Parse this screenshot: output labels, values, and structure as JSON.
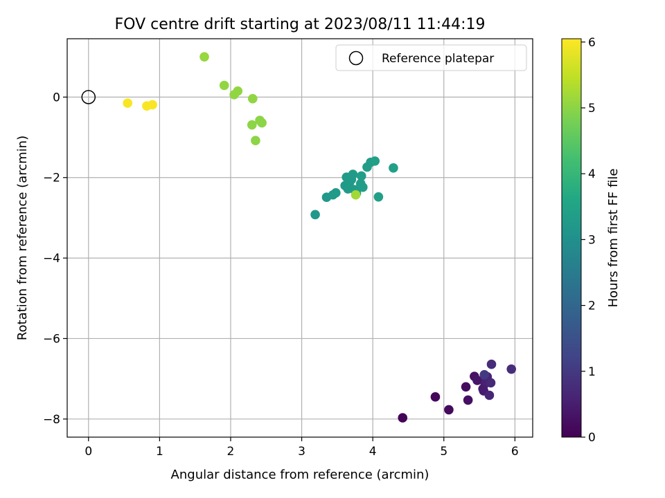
{
  "chart_data": {
    "type": "scatter",
    "title": "FOV centre drift starting at 2023/08/11 11:44:19",
    "xlabel": "Angular distance from reference (arcmin)",
    "ylabel": "Rotation from reference (arcmin)",
    "xlim": [
      -0.3,
      6.25
    ],
    "ylim": [
      -8.45,
      1.45
    ],
    "xticks": [
      0,
      1,
      2,
      3,
      4,
      5,
      6
    ],
    "yticks": [
      0,
      -2,
      -4,
      -6,
      -8
    ],
    "grid": true,
    "legend": {
      "position": "top-right",
      "entries": [
        "Reference platepar"
      ]
    },
    "reference_point": {
      "x": 0,
      "y": 0
    },
    "colorbar": {
      "label": "Hours from first FF file",
      "min": 0,
      "max": 6.05,
      "ticks": [
        0,
        1,
        2,
        3,
        4,
        5,
        6
      ],
      "colormap": "viridis"
    },
    "series": [
      {
        "points": [
          {
            "x": 4.42,
            "y": -7.97,
            "c": 0.05
          },
          {
            "x": 4.88,
            "y": -7.45,
            "c": 0.1
          },
          {
            "x": 5.07,
            "y": -7.77,
            "c": 0.15
          },
          {
            "x": 5.31,
            "y": -7.2,
            "c": 0.2
          },
          {
            "x": 5.34,
            "y": -7.53,
            "c": 0.25
          },
          {
            "x": 5.43,
            "y": -6.94,
            "c": 0.3
          },
          {
            "x": 5.47,
            "y": -7.04,
            "c": 0.35
          },
          {
            "x": 5.55,
            "y": -7.25,
            "c": 0.4
          },
          {
            "x": 5.56,
            "y": -7.3,
            "c": 0.45
          },
          {
            "x": 5.58,
            "y": -7.12,
            "c": 0.5
          },
          {
            "x": 5.59,
            "y": -7.06,
            "c": 0.55
          },
          {
            "x": 5.61,
            "y": -6.95,
            "c": 0.6
          },
          {
            "x": 5.64,
            "y": -7.41,
            "c": 0.65
          },
          {
            "x": 5.66,
            "y": -7.1,
            "c": 0.7
          },
          {
            "x": 5.67,
            "y": -6.64,
            "c": 0.75
          },
          {
            "x": 5.95,
            "y": -6.76,
            "c": 0.8
          },
          {
            "x": 5.57,
            "y": -6.9,
            "c": 1.0
          },
          {
            "x": 3.19,
            "y": -2.92,
            "c": 3.2
          },
          {
            "x": 3.35,
            "y": -2.49,
            "c": 3.2
          },
          {
            "x": 3.44,
            "y": -2.43,
            "c": 3.25
          },
          {
            "x": 3.48,
            "y": -2.38,
            "c": 3.25
          },
          {
            "x": 3.61,
            "y": -2.2,
            "c": 3.25
          },
          {
            "x": 3.63,
            "y": -1.99,
            "c": 3.25
          },
          {
            "x": 3.65,
            "y": -2.28,
            "c": 3.3
          },
          {
            "x": 3.67,
            "y": -2.14,
            "c": 3.3
          },
          {
            "x": 3.7,
            "y": -2.05,
            "c": 3.3
          },
          {
            "x": 3.72,
            "y": -1.92,
            "c": 3.3
          },
          {
            "x": 3.74,
            "y": -2.3,
            "c": 3.3
          },
          {
            "x": 3.77,
            "y": -2.39,
            "c": 3.35
          },
          {
            "x": 3.83,
            "y": -2.15,
            "c": 3.35
          },
          {
            "x": 3.84,
            "y": -1.96,
            "c": 3.35
          },
          {
            "x": 3.86,
            "y": -2.24,
            "c": 3.35
          },
          {
            "x": 3.92,
            "y": -1.74,
            "c": 3.35
          },
          {
            "x": 3.97,
            "y": -1.62,
            "c": 3.35
          },
          {
            "x": 4.03,
            "y": -1.59,
            "c": 3.4
          },
          {
            "x": 4.08,
            "y": -2.48,
            "c": 3.4
          },
          {
            "x": 4.29,
            "y": -1.76,
            "c": 3.4
          },
          {
            "x": 3.76,
            "y": -2.43,
            "c": 5.2
          },
          {
            "x": 1.63,
            "y": 1.0,
            "c": 5.1
          },
          {
            "x": 1.91,
            "y": 0.29,
            "c": 5.05
          },
          {
            "x": 2.05,
            "y": 0.06,
            "c": 5.05
          },
          {
            "x": 2.1,
            "y": 0.15,
            "c": 5.05
          },
          {
            "x": 2.31,
            "y": -0.04,
            "c": 5.05
          },
          {
            "x": 2.3,
            "y": -0.69,
            "c": 5.0
          },
          {
            "x": 2.35,
            "y": -1.08,
            "c": 5.0
          },
          {
            "x": 2.41,
            "y": -0.58,
            "c": 5.0
          },
          {
            "x": 2.44,
            "y": -0.64,
            "c": 5.0
          },
          {
            "x": 0.55,
            "y": -0.15,
            "c": 6.0
          },
          {
            "x": 0.82,
            "y": -0.22,
            "c": 6.0
          },
          {
            "x": 0.9,
            "y": -0.19,
            "c": 6.0
          }
        ]
      }
    ]
  }
}
